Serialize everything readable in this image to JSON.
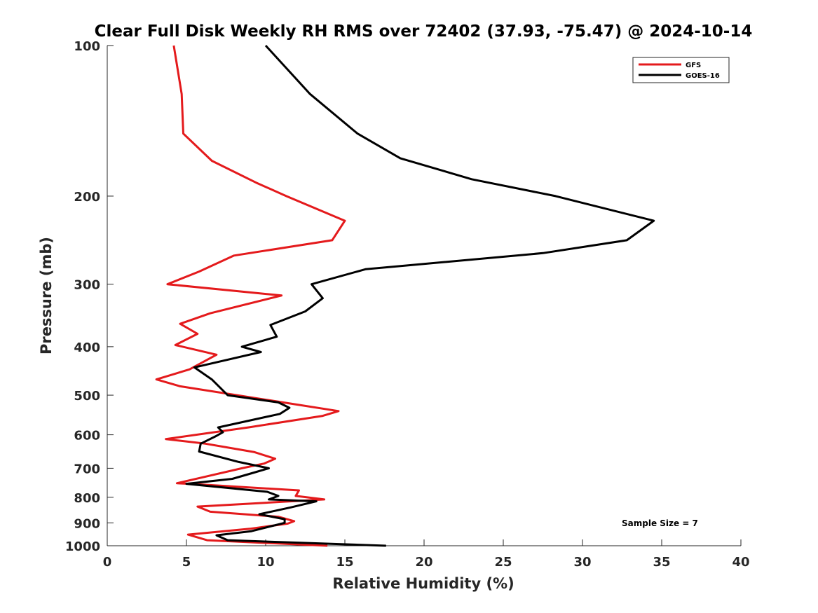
{
  "chart_data": {
    "type": "line",
    "title": "Clear Full Disk Weekly RH RMS over 72402 (37.93, -75.47) @ 2024-10-14",
    "xlabel": "Relative Humidity (%)",
    "ylabel": "Pressure (mb)",
    "xlim": [
      0,
      40
    ],
    "ylim": [
      100,
      1000
    ],
    "yscale": "log",
    "y_reversed": true,
    "xticks": [
      0,
      5,
      10,
      15,
      20,
      25,
      30,
      35,
      40
    ],
    "xtick_labels": [
      "0",
      "5",
      "10",
      "15",
      "20",
      "25",
      "30",
      "35",
      "40"
    ],
    "yticks": [
      100,
      200,
      300,
      400,
      500,
      600,
      700,
      800,
      900,
      1000
    ],
    "ytick_labels": [
      "100",
      "200",
      "300",
      "400",
      "500",
      "600",
      "700",
      "800",
      "900",
      "1000"
    ],
    "grid": false,
    "legend_position": "top-right",
    "annotation": "Sample Size = 7",
    "series": [
      {
        "name": "GFS",
        "color": "#e41a1c",
        "points": [
          [
            4.2,
            100
          ],
          [
            4.7,
            125
          ],
          [
            4.8,
            150
          ],
          [
            6.6,
            170
          ],
          [
            9.4,
            188
          ],
          [
            11.3,
            200
          ],
          [
            15.0,
            224
          ],
          [
            14.2,
            245
          ],
          [
            8.0,
            263
          ],
          [
            5.8,
            283
          ],
          [
            3.8,
            300
          ],
          [
            11.0,
            316
          ],
          [
            6.5,
            343
          ],
          [
            4.6,
            360
          ],
          [
            5.7,
            377
          ],
          [
            4.3,
            397
          ],
          [
            6.9,
            415
          ],
          [
            5.2,
            444
          ],
          [
            3.1,
            465
          ],
          [
            4.6,
            480
          ],
          [
            14.6,
            538
          ],
          [
            13.6,
            550
          ],
          [
            8.9,
            580
          ],
          [
            3.7,
            612
          ],
          [
            6.2,
            625
          ],
          [
            9.3,
            650
          ],
          [
            10.6,
            670
          ],
          [
            9.9,
            685
          ],
          [
            8.5,
            700
          ],
          [
            6.0,
            730
          ],
          [
            4.4,
            750
          ],
          [
            5.2,
            752
          ],
          [
            12.1,
            775
          ],
          [
            11.9,
            795
          ],
          [
            13.7,
            808
          ],
          [
            5.7,
            835
          ],
          [
            6.5,
            855
          ],
          [
            10.8,
            875
          ],
          [
            11.8,
            893
          ],
          [
            11.4,
            903
          ],
          [
            9.0,
            925
          ],
          [
            5.1,
            950
          ],
          [
            6.3,
            975
          ],
          [
            13.9,
            1000
          ]
        ]
      },
      {
        "name": "GOES-16",
        "color": "#000000",
        "points": [
          [
            10.0,
            100
          ],
          [
            12.8,
            125
          ],
          [
            15.8,
            150
          ],
          [
            18.5,
            168
          ],
          [
            23.0,
            185
          ],
          [
            28.3,
            200
          ],
          [
            34.5,
            224
          ],
          [
            32.8,
            245
          ],
          [
            27.5,
            260
          ],
          [
            16.3,
            280
          ],
          [
            12.9,
            300
          ],
          [
            13.6,
            320
          ],
          [
            12.5,
            340
          ],
          [
            10.3,
            362
          ],
          [
            10.7,
            382
          ],
          [
            8.5,
            400
          ],
          [
            9.7,
            410
          ],
          [
            5.5,
            440
          ],
          [
            6.6,
            465
          ],
          [
            7.6,
            500
          ],
          [
            10.8,
            517
          ],
          [
            11.5,
            530
          ],
          [
            10.9,
            545
          ],
          [
            7.0,
            580
          ],
          [
            7.3,
            593
          ],
          [
            6.9,
            603
          ],
          [
            5.9,
            625
          ],
          [
            5.8,
            648
          ],
          [
            8.3,
            680
          ],
          [
            10.2,
            700
          ],
          [
            9.2,
            715
          ],
          [
            7.9,
            735
          ],
          [
            5.0,
            752
          ],
          [
            10.1,
            780
          ],
          [
            10.8,
            795
          ],
          [
            10.2,
            808
          ],
          [
            13.2,
            815
          ],
          [
            11.6,
            838
          ],
          [
            9.6,
            865
          ],
          [
            11.2,
            885
          ],
          [
            11.2,
            900
          ],
          [
            9.1,
            935
          ],
          [
            6.9,
            953
          ],
          [
            7.6,
            975
          ],
          [
            17.6,
            1000
          ]
        ]
      }
    ]
  }
}
